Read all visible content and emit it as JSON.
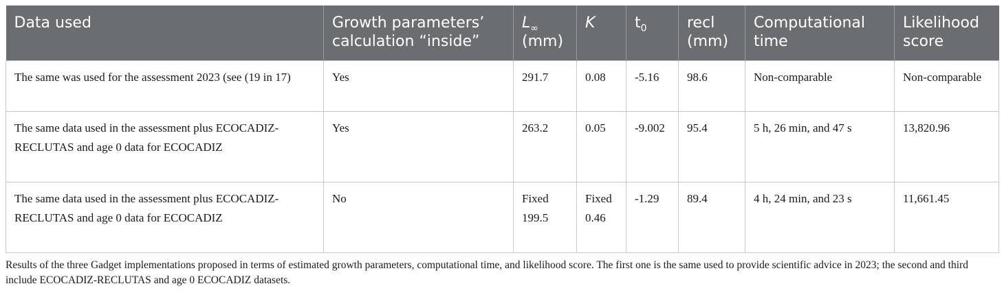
{
  "table": {
    "headers": {
      "data_used": "Data used",
      "growth_params": "Growth parameters’ calculation “inside”",
      "linf_symbol": "L",
      "linf_sub": "∞",
      "linf_unit": "(mm)",
      "k": "K",
      "t0_main": "t",
      "t0_sub": "0",
      "recl": "recl (mm)",
      "comp_time": "Computational time",
      "likelihood": "Likelihood score"
    },
    "rows": [
      {
        "data_used": "The same was used for the assessment 2023 (see (19 in 17)",
        "growth_params": "Yes",
        "linf": "291.7",
        "k": "0.08",
        "t0": "-5.16",
        "recl": "98.6",
        "comp_time": "Non-comparable",
        "likelihood": "Non-comparable"
      },
      {
        "data_used": "The same data used in the assessment plus ECOCADIZ-RECLUTAS and age 0 data for ECOCADIZ",
        "growth_params": "Yes",
        "linf": "263.2",
        "k": "0.05",
        "t0": "-9.002",
        "recl": "95.4",
        "comp_time": "5 h, 26 min, and 47 s",
        "likelihood": "13,820.96"
      },
      {
        "data_used": "The same data used in the assessment plus ECOCADIZ-RECLUTAS and age 0 data for ECOCADIZ",
        "growth_params": "No",
        "linf": "Fixed 199.5",
        "k": "Fixed 0.46",
        "t0": "-1.29",
        "recl": "89.4",
        "comp_time": "4 h, 24 min, and 23 s",
        "likelihood": "11,661.45"
      }
    ]
  },
  "caption": "Results of the three Gadget implementations proposed in terms of estimated growth parameters, computational time, and likelihood score. The first one is the same used to provide scientific advice in 2023; the second and third include ECOCADIZ-RECLUTAS and age 0 ECOCADIZ datasets."
}
